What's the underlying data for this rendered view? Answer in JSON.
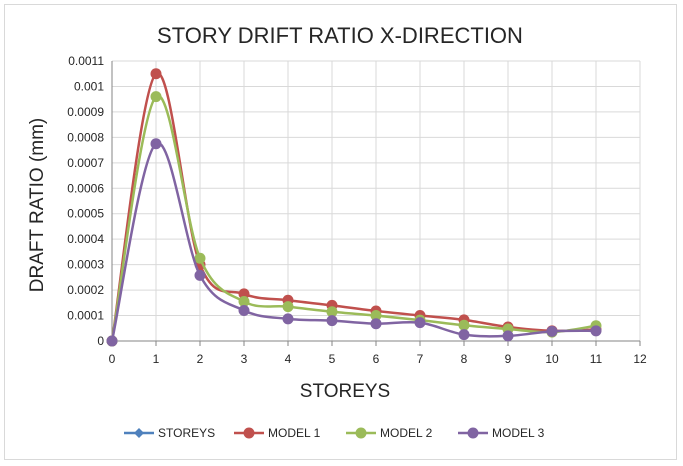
{
  "chart_data": {
    "type": "line",
    "title": "STORY DRIFT RATIO X-DIRECTION",
    "xlabel": "STOREYS",
    "ylabel": "DRAFT RATIO (mm)",
    "xlim": [
      0,
      12
    ],
    "ylim": [
      0,
      0.0011
    ],
    "x_ticks": [
      "0",
      "1",
      "2",
      "3",
      "4",
      "5",
      "6",
      "7",
      "8",
      "9",
      "10",
      "11",
      "12"
    ],
    "y_ticks": [
      "0",
      "0.0001",
      "0.0002",
      "0.0003",
      "0.0004",
      "0.0005",
      "0.0006",
      "0.0007",
      "0.0008",
      "0.0009",
      "0.001",
      "0.0011"
    ],
    "grid": true,
    "smooth": true,
    "legend_position": "bottom",
    "x": [
      0,
      1,
      2,
      3,
      4,
      5,
      6,
      7,
      8,
      9,
      10,
      11
    ],
    "series": [
      {
        "name": "STOREYS",
        "color": "#4f81bd",
        "marker": "diamond",
        "values": [
          0,
          null,
          null,
          null,
          null,
          null,
          null,
          null,
          null,
          null,
          null,
          null
        ]
      },
      {
        "name": "MODEL 1",
        "color": "#c0504d",
        "marker": "circle",
        "values": [
          0,
          0.00105,
          0.0003,
          0.000185,
          0.00016,
          0.00014,
          0.000118,
          0.0001,
          8.3e-05,
          5.5e-05,
          4e-05,
          4.5e-05
        ]
      },
      {
        "name": "MODEL 2",
        "color": "#9bbb59",
        "marker": "circle",
        "values": [
          0,
          0.00096,
          0.000325,
          0.000155,
          0.000135,
          0.000115,
          0.0001,
          8.2e-05,
          6.2e-05,
          4.7e-05,
          3.5e-05,
          6e-05
        ]
      },
      {
        "name": "MODEL 3",
        "color": "#8064a2",
        "marker": "circle",
        "values": [
          0,
          0.000775,
          0.000258,
          0.00012,
          8.7e-05,
          8e-05,
          6.8e-05,
          7.2e-05,
          2.5e-05,
          2e-05,
          3.8e-05,
          4e-05
        ]
      }
    ]
  }
}
